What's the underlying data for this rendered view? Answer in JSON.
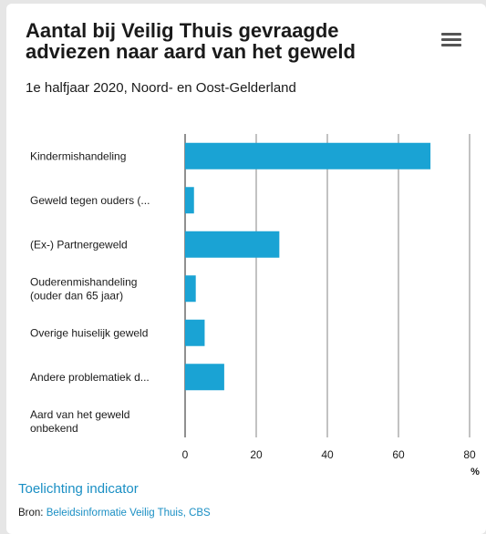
{
  "title": "Aantal bij Veilig Thuis gevraagde adviezen naar aard van het geweld",
  "subtitle": "1e halfjaar 2020, Noord- en Oost-Gelderland",
  "menu_icon": "hamburger-menu-icon",
  "colors": {
    "bar": "#1aa3d4",
    "link": "#1a8fc4",
    "grid": "#333333"
  },
  "footer": {
    "link_label": "Toelichting indicator",
    "source_prefix": "Bron: ",
    "source_link": "Beleidsinformatie Veilig Thuis, CBS"
  },
  "chart_data": {
    "type": "bar",
    "orientation": "horizontal",
    "categories": [
      [
        "Kindermishandeling"
      ],
      [
        "Geweld tegen ouders (..."
      ],
      [
        "(Ex-) Partnergeweld"
      ],
      [
        "Ouderenmishandeling",
        "(ouder dan 65 jaar)"
      ],
      [
        "Overige huiselijk geweld"
      ],
      [
        "Andere problematiek d..."
      ],
      [
        "Aard van het geweld",
        "onbekend"
      ]
    ],
    "values": [
      69,
      2.5,
      26.5,
      3,
      5.5,
      11,
      0
    ],
    "xlim": [
      0,
      80
    ],
    "xticks": [
      "0",
      "20",
      "40",
      "60",
      "80"
    ],
    "unit": "%",
    "grid": true
  }
}
